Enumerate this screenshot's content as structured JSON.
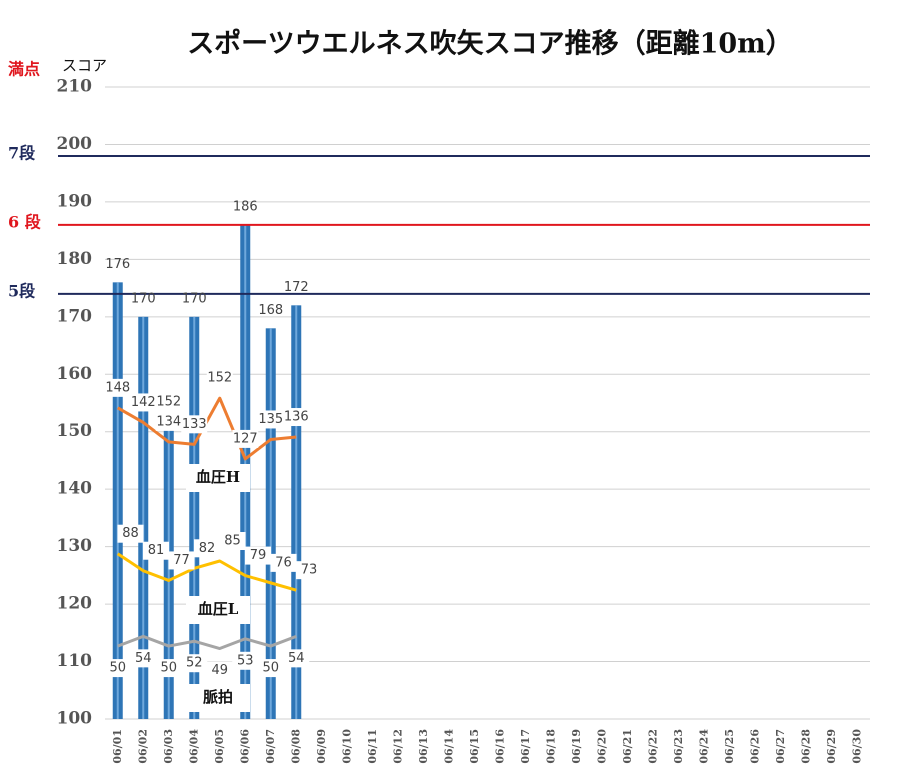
{
  "chart_data": {
    "type": "bar_line",
    "title": "スポーツウエルネス吹矢スコア推移（距離10m）",
    "y_label": "スコア",
    "annotation": "満点",
    "categories": [
      "06/01",
      "06/02",
      "06/03",
      "06/04",
      "06/05",
      "06/06",
      "06/07",
      "06/08",
      "06/09",
      "06/10",
      "06/11",
      "06/12",
      "06/13",
      "06/14",
      "06/15",
      "06/16",
      "06/17",
      "06/18",
      "06/19",
      "06/20",
      "06/21",
      "06/22",
      "06/23",
      "06/24",
      "06/25",
      "06/26",
      "06/27",
      "06/28",
      "06/29",
      "06/30"
    ],
    "bars": {
      "color": "#2e75b6",
      "values": [
        176,
        170,
        152,
        170,
        null,
        186,
        168,
        172,
        null,
        null,
        null,
        null,
        null,
        null,
        null,
        null,
        null,
        null,
        null,
        null,
        null,
        null,
        null,
        null,
        null,
        null,
        null,
        null,
        null,
        null
      ]
    },
    "series": [
      {
        "name": "血圧H",
        "color": "#ed7d31",
        "axis": "y2",
        "values": [
          148,
          142,
          134,
          133,
          152,
          127,
          135,
          136,
          null,
          null,
          null,
          null,
          null,
          null,
          null,
          null,
          null,
          null,
          null,
          null,
          null,
          null,
          null,
          null,
          null,
          null,
          null,
          null,
          null,
          null
        ]
      },
      {
        "name": "血圧L",
        "color": "#ffc000",
        "axis": "y2",
        "values": [
          88,
          81,
          77,
          82,
          85,
          79,
          76,
          73,
          null,
          null,
          null,
          null,
          null,
          null,
          null,
          null,
          null,
          null,
          null,
          null,
          null,
          null,
          null,
          null,
          null,
          null,
          null,
          null,
          null,
          null
        ]
      },
      {
        "name": "脈拍",
        "color": "#a5a5a5",
        "axis": "y2",
        "values": [
          50,
          54,
          50,
          52,
          49,
          53,
          50,
          54,
          null,
          null,
          null,
          null,
          null,
          null,
          null,
          null,
          null,
          null,
          null,
          null,
          null,
          null,
          null,
          null,
          null,
          null,
          null,
          null,
          null,
          null
        ]
      }
    ],
    "reference_lines": [
      {
        "label": "7段",
        "value": 198,
        "color": "#1f2a5c"
      },
      {
        "label": "6 段",
        "value": 186,
        "color": "#e0161e"
      },
      {
        "label": "5段",
        "value": 174,
        "color": "#1f2a5c"
      }
    ],
    "ylim": [
      100,
      210
    ],
    "yticks": [
      100,
      110,
      120,
      130,
      140,
      150,
      160,
      170,
      180,
      190,
      200,
      210
    ],
    "y2lim": [
      20,
      280
    ],
    "grid": true
  }
}
